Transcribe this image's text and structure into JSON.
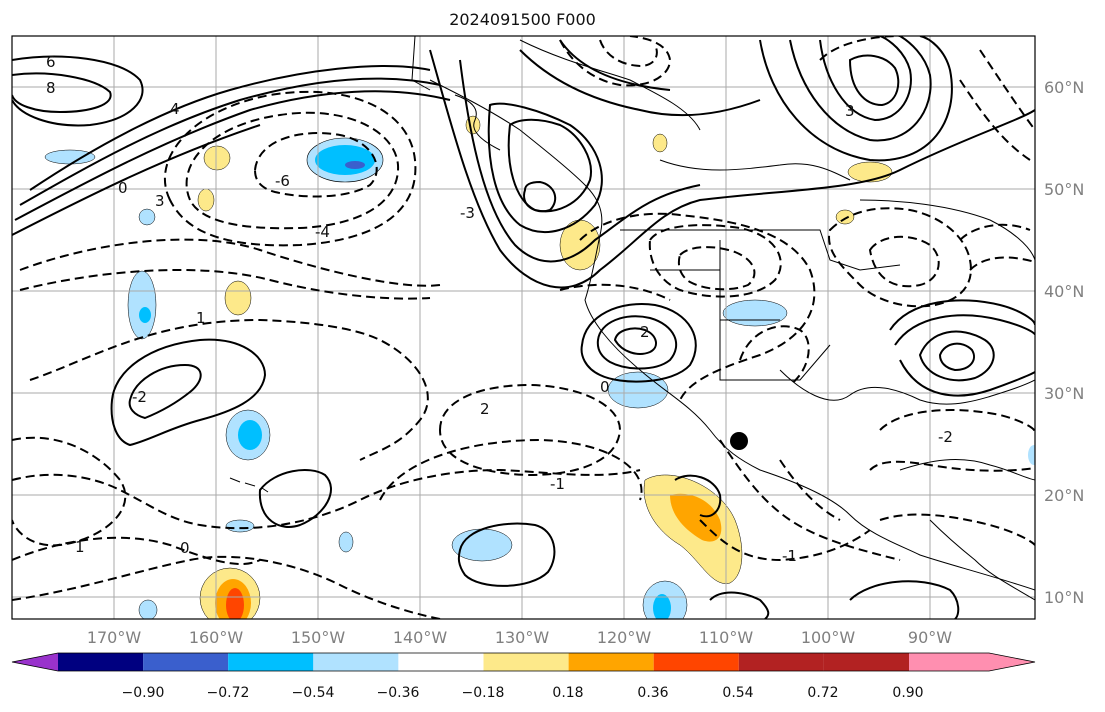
{
  "title": "2024091500 F000",
  "map": {
    "lon_ticks": [
      "170°W",
      "160°W",
      "150°W",
      "140°W",
      "130°W",
      "120°W",
      "110°W",
      "100°W",
      "90°W"
    ],
    "lat_ticks": [
      "60°N",
      "50°N",
      "40°N",
      "30°N",
      "20°N",
      "10°N"
    ],
    "contour_labels": [
      "6",
      "8",
      "4",
      "0",
      "3",
      "-6",
      "-4",
      "1",
      "-2",
      "2",
      "-1",
      "0",
      "-3",
      "3",
      "-1",
      "2",
      "-2",
      "1",
      "0"
    ]
  },
  "colorbar": {
    "ticks": [
      "−0.90",
      "−0.72",
      "−0.54",
      "−0.36",
      "−0.18",
      "0.18",
      "0.36",
      "0.54",
      "0.72",
      "0.90"
    ],
    "colors": [
      "#9932cc",
      "#000080",
      "#3a5fcd",
      "#00bfff",
      "#b0e2ff",
      "#ffffff",
      "#fde98a",
      "#ffa500",
      "#ff4500",
      "#b22222",
      "#ff8fb0"
    ]
  },
  "marker": {
    "label": ""
  }
}
